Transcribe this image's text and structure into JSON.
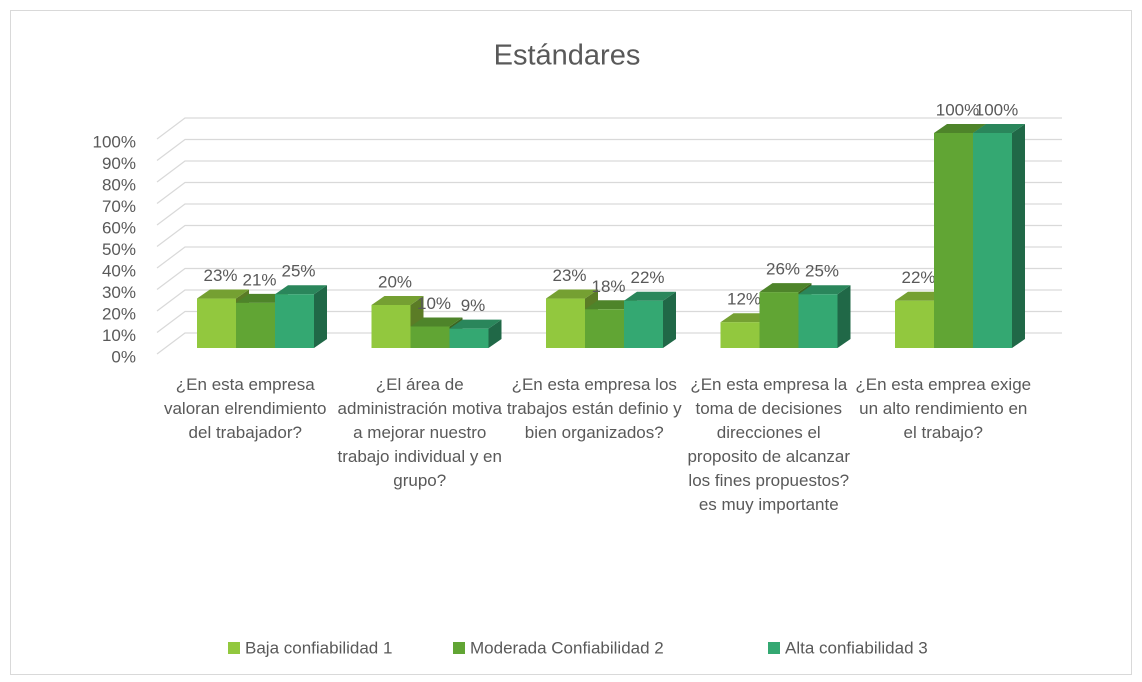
{
  "chart_data": {
    "type": "bar3d",
    "title": "Estándares",
    "categories": [
      "¿En esta empresa valoran elrendimiento del trabajador?",
      "¿El área de administración motiva a mejorar nuestro trabajo individual y en grupo?",
      "¿En esta empresa los trabajos están definio y bien organizados?",
      "¿En esta empresa la toma de decisiones direcciones el proposito de alcanzar los fines propuestos?es muy importante",
      "¿En esta emprea exige un alto rendimiento en el trabajo?"
    ],
    "series": [
      {
        "name": "Baja confiabilidad 1",
        "color": "#92c83e",
        "values": [
          23,
          20,
          23,
          12,
          22
        ],
        "value_labels": [
          "23%",
          "20%",
          "23%",
          "12%",
          "22%"
        ]
      },
      {
        "name": "Moderada Confiabilidad 2",
        "color": "#61a534",
        "values": [
          21,
          10,
          18,
          26,
          100
        ],
        "value_labels": [
          "21%",
          "10%",
          "18%",
          "26%",
          "100%"
        ]
      },
      {
        "name": "Alta confiabilidad 3",
        "color": "#34a872",
        "values": [
          25,
          9,
          22,
          25,
          100
        ],
        "value_labels": [
          "25%",
          "9%",
          "22%",
          "25%",
          "100%"
        ]
      }
    ],
    "ylim": [
      0,
      100
    ],
    "yticks": [
      {
        "value": 0,
        "label": "0%"
      },
      {
        "value": 10,
        "label": "10%"
      },
      {
        "value": 20,
        "label": "20%"
      },
      {
        "value": 30,
        "label": "30%"
      },
      {
        "value": 40,
        "label": "40%"
      },
      {
        "value": 50,
        "label": "50%"
      },
      {
        "value": 60,
        "label": "60%"
      },
      {
        "value": 70,
        "label": "70%"
      },
      {
        "value": 80,
        "label": "80%"
      },
      {
        "value": 90,
        "label": "90%"
      },
      {
        "value": 100,
        "label": "100%"
      }
    ],
    "grid": true,
    "legend": "bottom"
  }
}
